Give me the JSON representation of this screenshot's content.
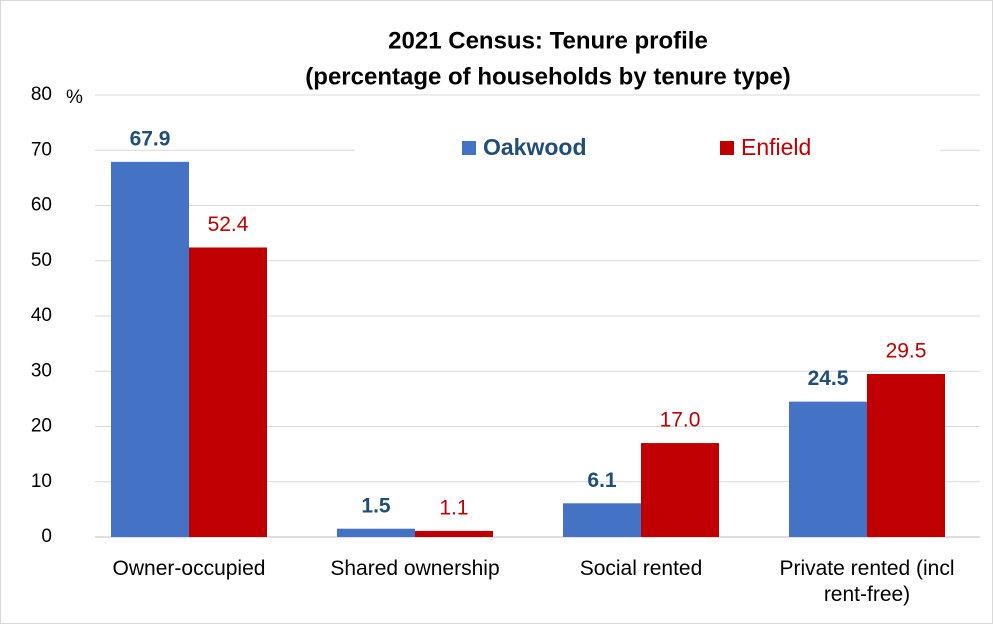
{
  "chart_data": {
    "type": "bar",
    "title": "2021 Census: Tenure profile",
    "subtitle": "(percentage of households by tenure type)",
    "y_label": "%",
    "categories": [
      "Owner-occupied",
      "Shared ownership",
      "Social rented",
      "Private rented (incl rent-free)"
    ],
    "series": [
      {
        "name": "Oakwood",
        "color": "#4472c4",
        "values": [
          67.9,
          1.5,
          6.1,
          24.5
        ],
        "value_labels": [
          "67.9",
          "1.5",
          "6.1",
          "24.5"
        ]
      },
      {
        "name": "Enfield",
        "color": "#c00000",
        "values": [
          52.4,
          1.1,
          17,
          29.5
        ],
        "value_labels": [
          "52.4",
          "1.1",
          "17.0",
          "29.5"
        ]
      }
    ],
    "ylim": [
      0,
      80
    ],
    "yticks": [
      0,
      10,
      20,
      30,
      40,
      50,
      60,
      70,
      80
    ],
    "grid": true,
    "legend": "top"
  }
}
